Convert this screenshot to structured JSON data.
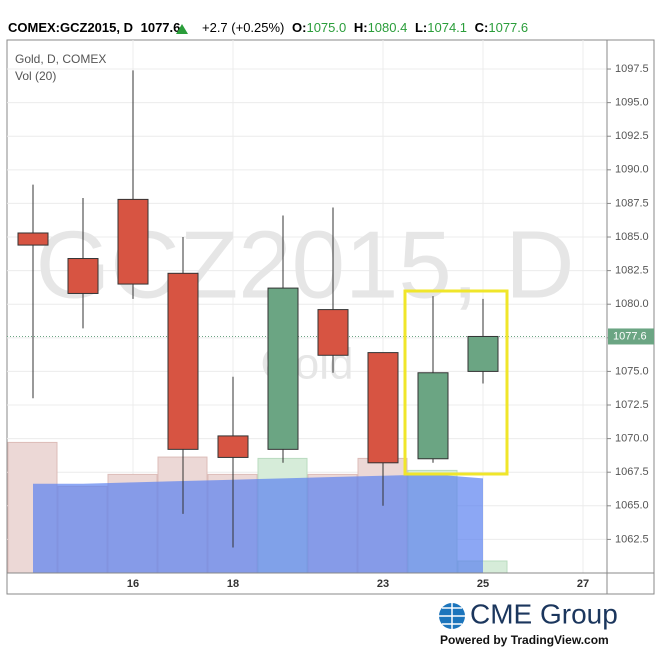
{
  "header": {
    "symbol": "COMEX:GCZ2015, D",
    "last": "1077.6",
    "change": "+2.7 (+0.25%)",
    "o_label": "O:",
    "o": "1075.0",
    "h_label": "H:",
    "h": "1080.4",
    "l_label": "L:",
    "l": "1074.1",
    "c_label": "C:",
    "c": "1077.6"
  },
  "chart_data": {
    "type": "candlestick",
    "title": "Gold, D, COMEX",
    "volume_name": "Vol (20)",
    "watermark": "GCZ2015, D",
    "watermark_sub": "Gold",
    "categories": [
      null,
      null,
      "16",
      null,
      "18",
      null,
      null,
      "23",
      null,
      "25",
      null,
      "27"
    ],
    "open": [
      1085.3,
      1083.4,
      1087.8,
      1082.3,
      1070.2,
      1069.2,
      1079.6,
      1076.4,
      1068.5,
      1075.0,
      null,
      null
    ],
    "high": [
      1088.9,
      1087.9,
      1097.4,
      1085.0,
      1074.6,
      1086.6,
      1087.2,
      1076.4,
      1080.6,
      1080.4,
      null,
      null
    ],
    "low": [
      1073.0,
      1078.2,
      1080.4,
      1064.4,
      1061.9,
      1068.2,
      1074.9,
      1065.0,
      1068.2,
      1074.1,
      null,
      null
    ],
    "close": [
      1084.4,
      1080.8,
      1081.5,
      1069.2,
      1068.6,
      1081.2,
      1076.2,
      1068.2,
      1074.9,
      1077.6,
      null,
      null
    ],
    "volume": [
      98,
      65,
      74,
      87,
      74,
      86,
      74,
      86,
      77,
      9,
      null,
      null
    ],
    "volume_ma": [
      67,
      67,
      68,
      69,
      70,
      71,
      72,
      73,
      74,
      71,
      null,
      null
    ],
    "vlim": [
      0,
      400
    ],
    "up_color": "#6ba583",
    "down_color": "#d75442",
    "volume_up_color": "#d6ecd9",
    "volume_down_color": "#ecd8d6",
    "ma_color": "#5b82f0",
    "last_price": 1077.6,
    "last_color": "#6ba583",
    "ylim": [
      1060,
      1099.66
    ],
    "yticks": [
      1062.5,
      {
        "value": 1065,
        "label": "1065.0"
      },
      1067.5,
      {
        "value": 1070,
        "label": "1070.0"
      },
      1072.5,
      {
        "value": 1075,
        "label": "1075.0"
      },
      1077.5,
      {
        "value": 1080,
        "label": "1080.0"
      },
      1082.5,
      {
        "value": 1085,
        "label": "1085.0"
      },
      1087.5,
      {
        "value": 1090,
        "label": "1090.0"
      },
      1092.5,
      {
        "value": 1095,
        "label": "1095.0"
      },
      1097.5
    ],
    "grid": true
  },
  "footer": {
    "brand": "CME Group",
    "powered": "Powered by TradingView.com"
  }
}
